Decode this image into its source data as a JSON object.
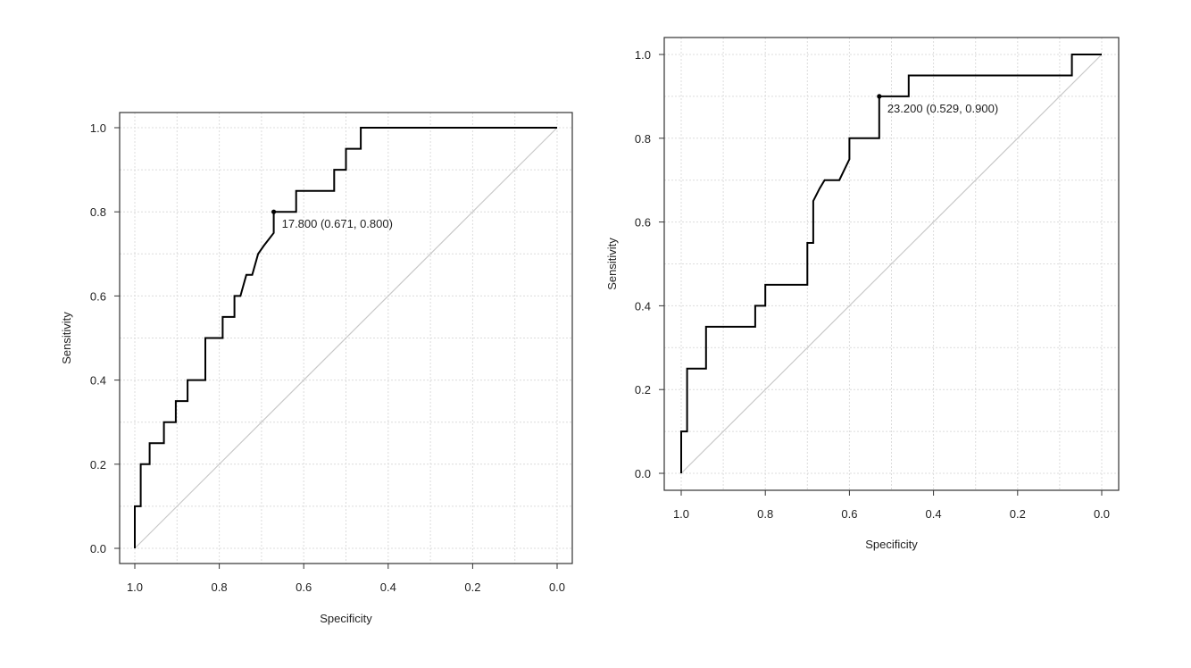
{
  "chart_data": [
    {
      "type": "line",
      "title": "",
      "xlabel": "Specificity",
      "ylabel": "Sensitivity",
      "xlim": [
        1.0,
        0.0
      ],
      "ylim": [
        0.0,
        1.0
      ],
      "x_reversed": true,
      "grid": true,
      "x_ticks": [
        "1.0",
        "0.8",
        "0.6",
        "0.4",
        "0.2",
        "0.0"
      ],
      "y_ticks": [
        "0.0",
        "0.2",
        "0.4",
        "0.6",
        "0.8",
        "1.0"
      ],
      "reference_line": {
        "from": [
          1.0,
          0.0
        ],
        "to": [
          0.0,
          1.0
        ],
        "color": "#c8c8c8"
      },
      "series": [
        {
          "color": "#000000",
          "specificity": [
            1.0,
            1.0,
            0.986,
            0.986,
            0.965,
            0.965,
            0.931,
            0.931,
            0.903,
            0.903,
            0.875,
            0.875,
            0.833,
            0.833,
            0.792,
            0.792,
            0.764,
            0.764,
            0.75,
            0.736,
            0.722,
            0.708,
            0.694,
            0.671,
            0.671,
            0.618,
            0.618,
            0.528,
            0.528,
            0.5,
            0.5,
            0.465,
            0.465,
            0.0
          ],
          "sensitivity": [
            0.0,
            0.1,
            0.1,
            0.2,
            0.2,
            0.25,
            0.25,
            0.3,
            0.3,
            0.35,
            0.35,
            0.4,
            0.4,
            0.5,
            0.5,
            0.55,
            0.55,
            0.6,
            0.6,
            0.65,
            0.65,
            0.7,
            0.72,
            0.75,
            0.8,
            0.8,
            0.85,
            0.85,
            0.9,
            0.9,
            0.95,
            0.95,
            1.0,
            1.0
          ]
        }
      ],
      "annotations": [
        {
          "x": 0.671,
          "y": 0.8,
          "text": "17.800 (0.671, 0.800)"
        }
      ]
    },
    {
      "type": "line",
      "title": "",
      "xlabel": "Specificity",
      "ylabel": "Sensitivity",
      "xlim": [
        1.0,
        0.0
      ],
      "ylim": [
        0.0,
        1.0
      ],
      "x_reversed": true,
      "grid": true,
      "x_ticks": [
        "1.0",
        "0.8",
        "0.6",
        "0.4",
        "0.2",
        "0.0"
      ],
      "y_ticks": [
        "0.0",
        "0.2",
        "0.4",
        "0.6",
        "0.8",
        "1.0"
      ],
      "reference_line": {
        "from": [
          1.0,
          0.0
        ],
        "to": [
          0.0,
          1.0
        ],
        "color": "#c8c8c8"
      },
      "series": [
        {
          "color": "#000000",
          "specificity": [
            1.0,
            1.0,
            0.986,
            0.986,
            0.941,
            0.941,
            0.824,
            0.824,
            0.8,
            0.8,
            0.7,
            0.7,
            0.686,
            0.686,
            0.671,
            0.659,
            0.624,
            0.6,
            0.6,
            0.529,
            0.529,
            0.459,
            0.459,
            0.071,
            0.071,
            0.0
          ],
          "sensitivity": [
            0.0,
            0.1,
            0.1,
            0.25,
            0.25,
            0.35,
            0.35,
            0.4,
            0.4,
            0.45,
            0.45,
            0.55,
            0.55,
            0.65,
            0.68,
            0.7,
            0.7,
            0.75,
            0.8,
            0.8,
            0.9,
            0.9,
            0.95,
            0.95,
            1.0,
            1.0
          ]
        }
      ],
      "annotations": [
        {
          "x": 0.529,
          "y": 0.9,
          "text": "23.200 (0.529, 0.900)"
        }
      ]
    }
  ]
}
